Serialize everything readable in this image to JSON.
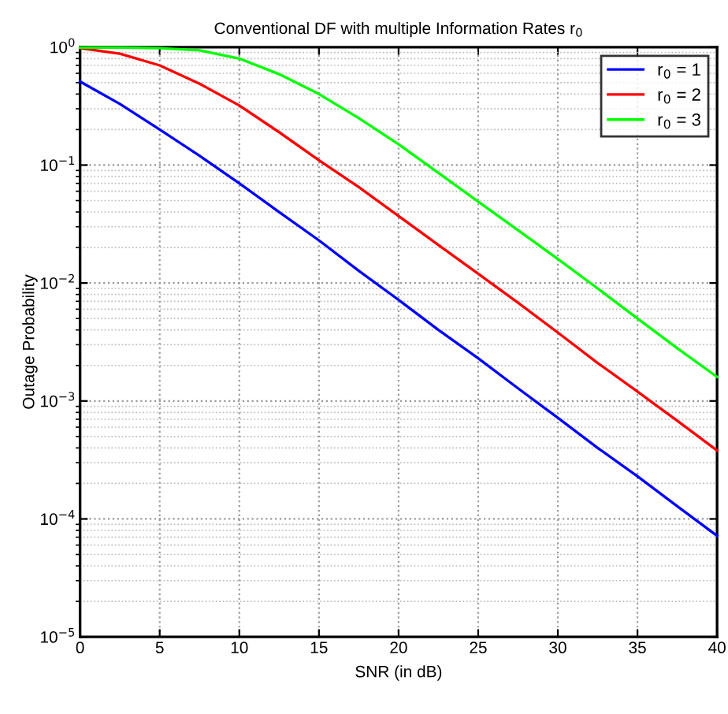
{
  "chart_data": {
    "type": "line",
    "title": "Conventional DF with multiple Information Rates r$_{0}$",
    "xlabel": "SNR (in dB)",
    "ylabel": "Outage Probability",
    "x": [
      0,
      2.5,
      5,
      7.5,
      10,
      12.5,
      15,
      17.5,
      20,
      22.5,
      25,
      27.5,
      30,
      32.5,
      35,
      37.5,
      40
    ],
    "series": [
      {
        "name": "r$_{0}$ = 1",
        "color": "#0000ff",
        "values": [
          0.51,
          0.33,
          0.2,
          0.12,
          0.07,
          0.04,
          0.023,
          0.0127,
          0.0072,
          0.004,
          0.0023,
          0.00128,
          0.00072,
          0.0004,
          0.00023,
          0.000128,
          7.2e-05
        ]
      },
      {
        "name": "r$_{0}$ = 2",
        "color": "#ff0000",
        "values": [
          0.98,
          0.88,
          0.7,
          0.49,
          0.32,
          0.19,
          0.11,
          0.065,
          0.037,
          0.021,
          0.012,
          0.0068,
          0.0038,
          0.0021,
          0.0012,
          0.00068,
          0.00038
        ]
      },
      {
        "name": "r$_{0}$ = 3",
        "color": "#00ff00",
        "values": [
          0.99,
          0.99,
          0.98,
          0.94,
          0.8,
          0.59,
          0.4,
          0.25,
          0.15,
          0.086,
          0.049,
          0.028,
          0.016,
          0.009,
          0.005,
          0.0028,
          0.0016
        ]
      }
    ],
    "log": "y",
    "xlim": [
      0,
      40
    ],
    "ylim": [
      1e-05,
      1
    ],
    "xticks": [
      0,
      5,
      10,
      15,
      20,
      25,
      30,
      35,
      40
    ],
    "yticks": [
      {
        "value": 1e-05,
        "label": "10$^{−5}$"
      },
      {
        "value": 0.0001,
        "label": "10$^{−4}$"
      },
      {
        "value": 0.001,
        "label": "10$^{−3}$"
      },
      {
        "value": 0.01,
        "label": "10$^{−2}$"
      },
      {
        "value": 0.1,
        "label": "10$^{−1}$"
      },
      {
        "value": 1,
        "label": "10$^{0}$"
      }
    ],
    "grid": true,
    "legend": "top right",
    "marker": "none",
    "line_style": "solid"
  }
}
